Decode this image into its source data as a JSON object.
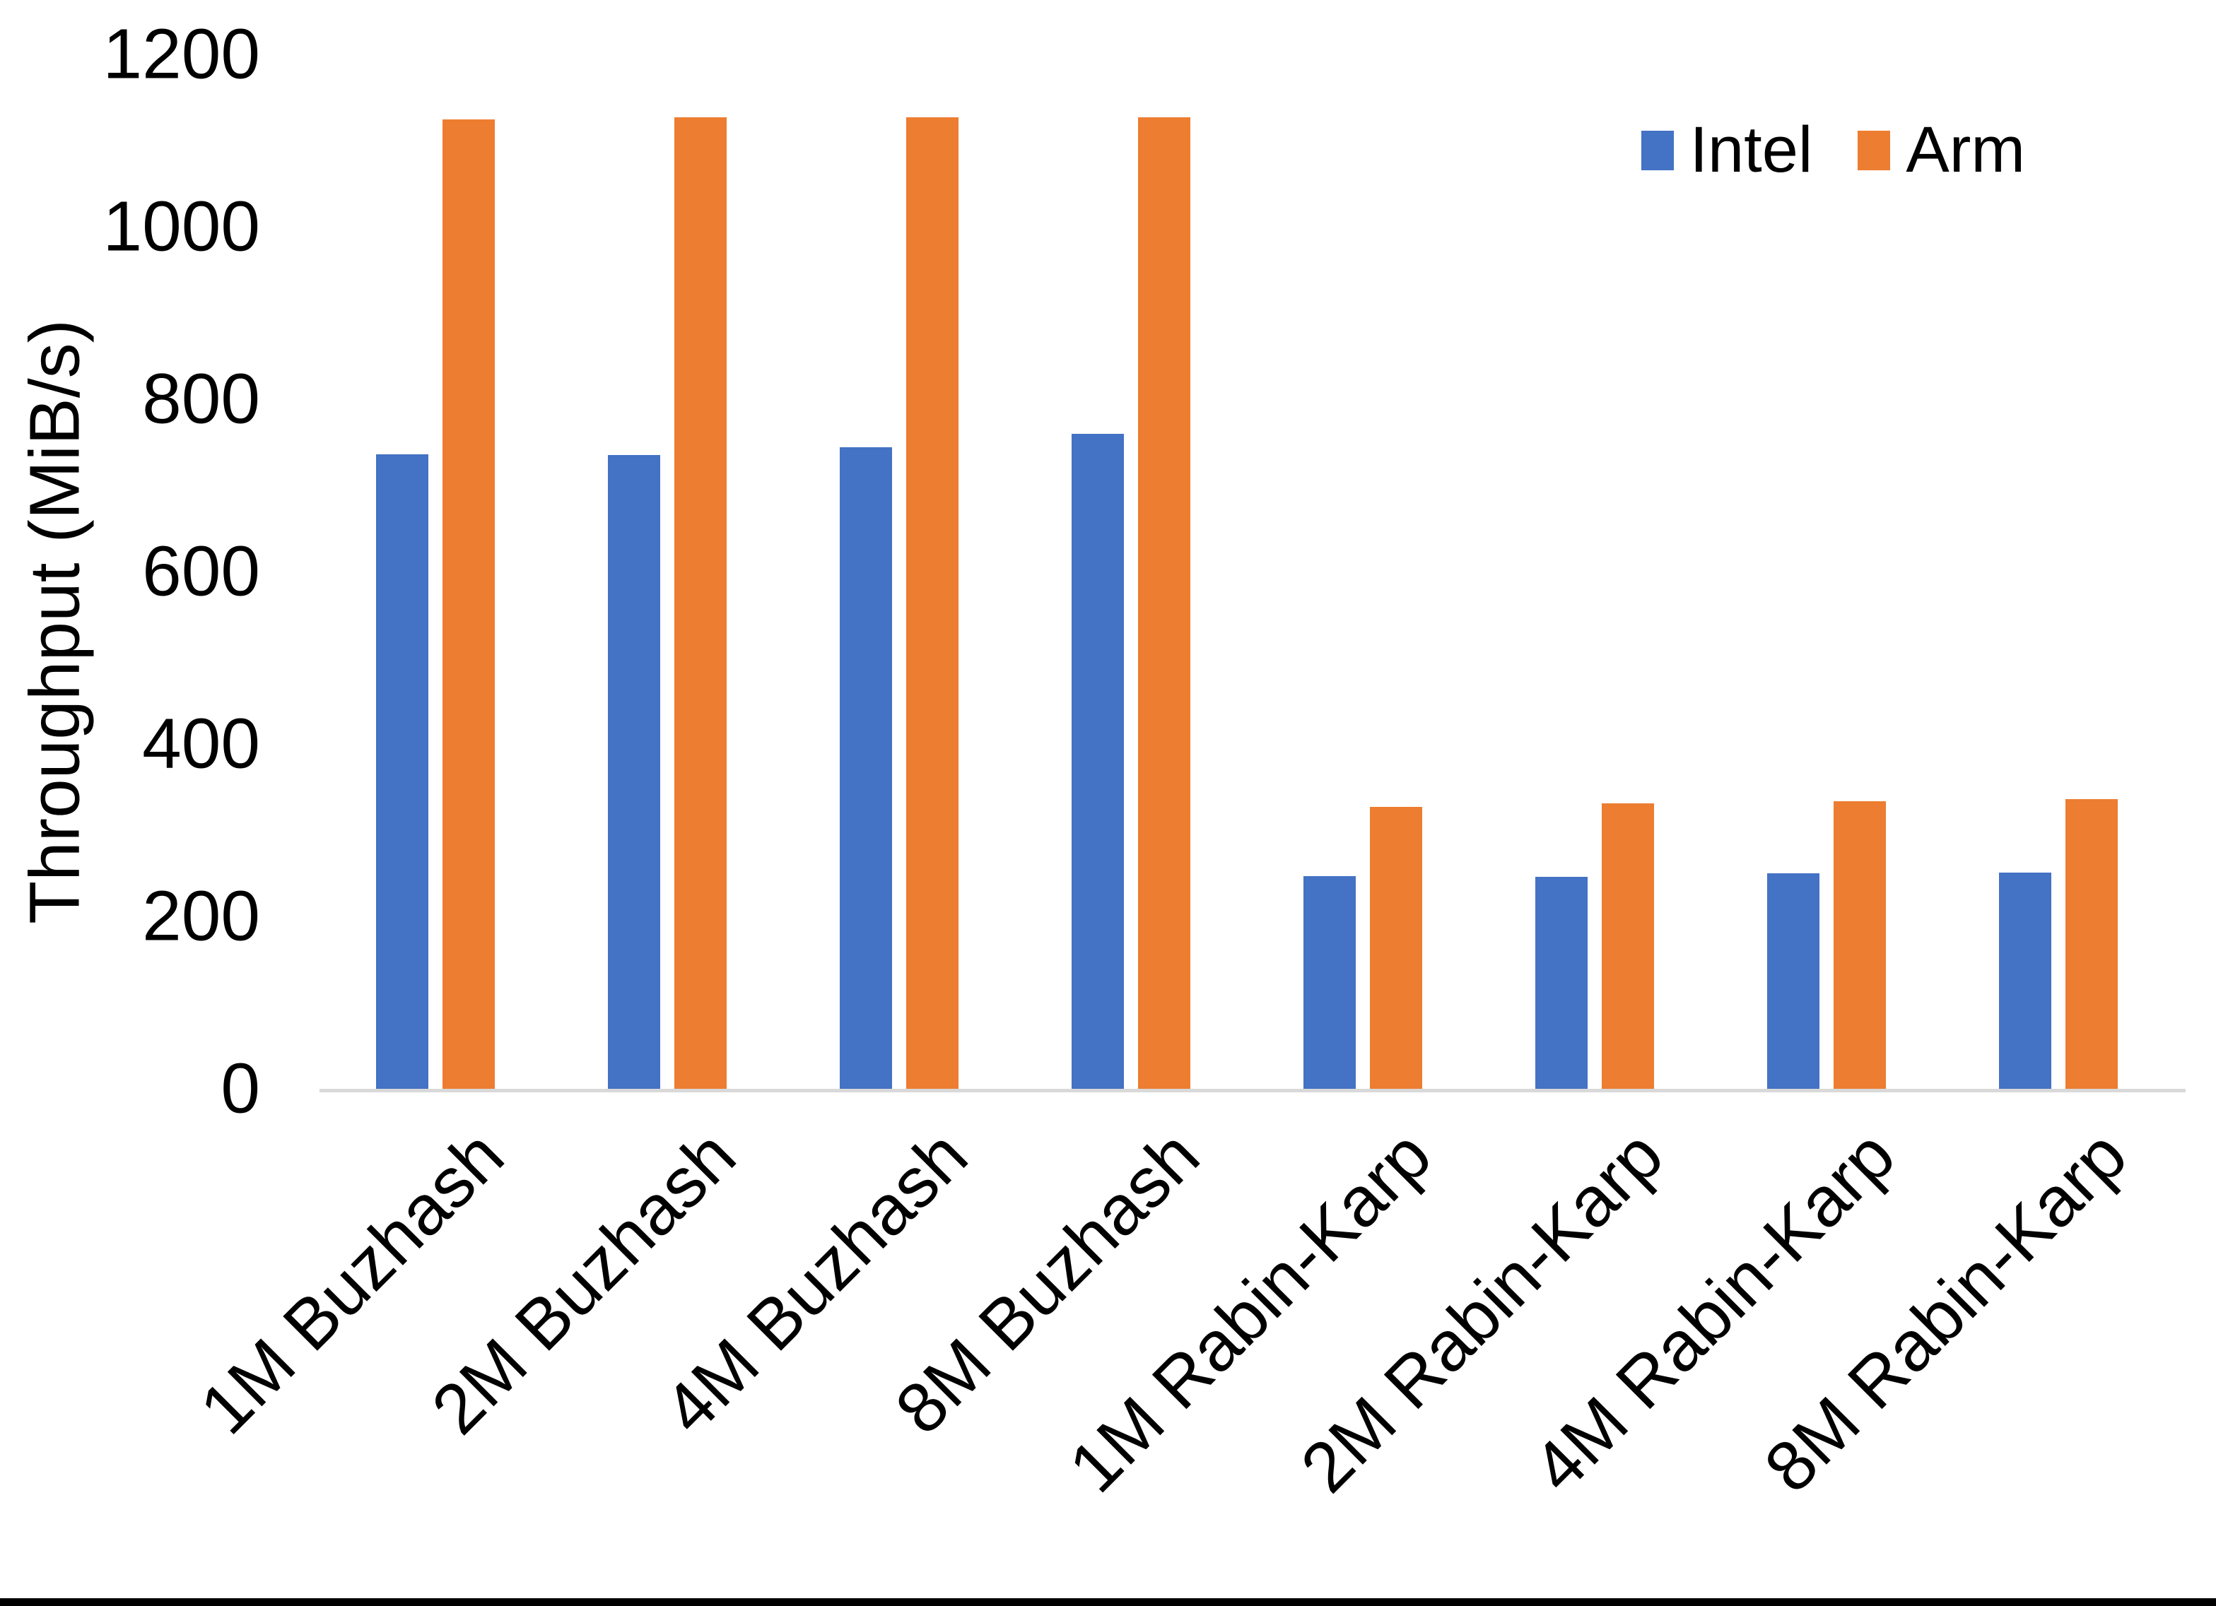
{
  "chart_data": {
    "type": "bar",
    "title": "",
    "xlabel": "",
    "ylabel": "Throughput (MiB/s)",
    "ylim": [
      0,
      1200
    ],
    "yticks": [
      0,
      200,
      400,
      600,
      800,
      1000,
      1200
    ],
    "grid": false,
    "legend_position": "top-right",
    "categories": [
      "1M Buzhash",
      "2M Buzhash",
      "4M Buzhash",
      "8M Buzhash",
      "1M Rabin-Karp",
      "2M Rabin-Karp",
      "4M Rabin-Karp",
      "8M Rabin-Karp"
    ],
    "series": [
      {
        "name": "Intel",
        "color": "#4472C4",
        "values": [
          736,
          735,
          744,
          760,
          247,
          246,
          250,
          251
        ]
      },
      {
        "name": "Arm",
        "color": "#ED7D31",
        "values": [
          1125,
          1127,
          1127,
          1127,
          327,
          331,
          334,
          336
        ]
      }
    ]
  },
  "colors": {
    "axis_line": "#d9d9d9",
    "bottom_border": "#000000"
  }
}
